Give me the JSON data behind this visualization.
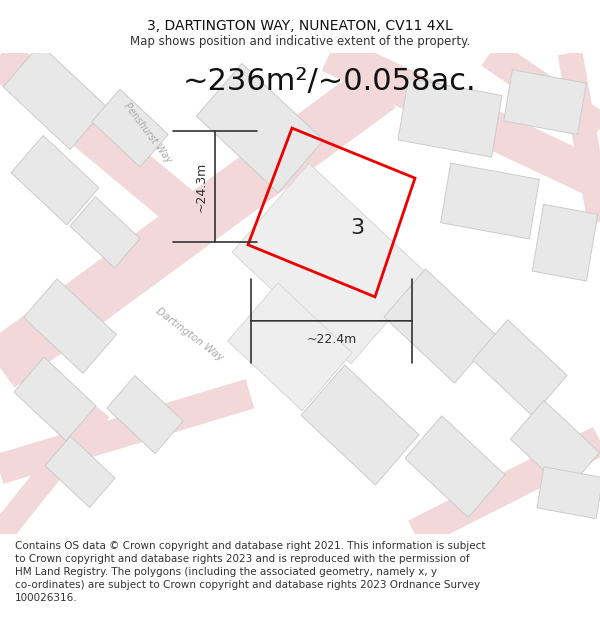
{
  "title": "3, DARTINGTON WAY, NUNEATON, CV11 4XL",
  "subtitle": "Map shows position and indicative extent of the property.",
  "area_text": "~236m²/~0.058ac.",
  "dimension_h": "~24.3m",
  "dimension_w": "~22.4m",
  "plot_number": "3",
  "footer": "Contains OS data © Crown copyright and database right 2021. This information is subject to Crown copyright and database rights 2023 and is reproduced with the permission of HM Land Registry. The polygons (including the associated geometry, namely x, y co-ordinates) are subject to Crown copyright and database rights 2023 Ordnance Survey 100026316.",
  "map_bg": "#f7f7f7",
  "road_fill": "#f2d8d8",
  "road_edge": "#e8c4c4",
  "building_fill": "#e8e8e8",
  "building_edge": "#cccccc",
  "plot_edge": "#ee0000",
  "dim_color": "#333333",
  "street_color": "#aaaaaa",
  "title_fontsize": 10,
  "subtitle_fontsize": 8.5,
  "area_fontsize": 22,
  "dim_fontsize": 9,
  "plot_num_fontsize": 16,
  "footer_fontsize": 7.5
}
